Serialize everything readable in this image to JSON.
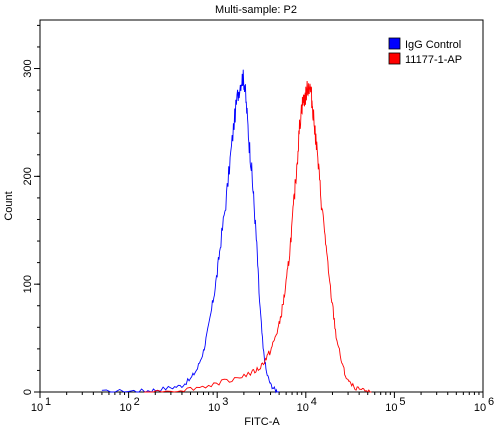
{
  "chart_data": {
    "type": "area",
    "title": "Multi-sample: P2",
    "xlabel": "FITC-A",
    "ylabel": "Count",
    "xscale": "log",
    "xlim": [
      10,
      1000000
    ],
    "ylim": [
      0,
      345
    ],
    "x_ticks": [
      {
        "base": "10",
        "exp": "1"
      },
      {
        "base": "10",
        "exp": "2"
      },
      {
        "base": "10",
        "exp": "3"
      },
      {
        "base": "10",
        "exp": "4"
      },
      {
        "base": "10",
        "exp": "5"
      },
      {
        "base": "10",
        "exp": "6"
      }
    ],
    "y_ticks": [
      "0",
      "100",
      "200",
      "300"
    ],
    "y_tick_values": [
      0,
      100,
      200,
      300
    ],
    "legend_position": "top-right",
    "grid": false,
    "series": [
      {
        "name": "IgG Control",
        "color": "#0000ff",
        "x": [
          50,
          100,
          150,
          200,
          300,
          400,
          500,
          600,
          700,
          800,
          900,
          1000,
          1100,
          1250,
          1400,
          1550,
          1700,
          1850,
          1950,
          2050,
          2150,
          2300,
          2450,
          2600,
          2800,
          3000,
          3300,
          3600,
          4000,
          4500,
          5000
        ],
        "y": [
          0,
          1,
          1,
          2,
          4,
          6,
          12,
          22,
          38,
          60,
          85,
          110,
          140,
          175,
          215,
          250,
          275,
          288,
          292,
          285,
          262,
          230,
          205,
          175,
          135,
          85,
          40,
          18,
          7,
          2,
          0
        ]
      },
      {
        "name": "11177-1-AP",
        "color": "#ff0000",
        "x": [
          150,
          300,
          500,
          800,
          1200,
          1800,
          2500,
          3000,
          3500,
          4000,
          4500,
          5000,
          5500,
          6000,
          6500,
          7000,
          7500,
          8000,
          8500,
          9000,
          9500,
          10000,
          10500,
          11000,
          11500,
          12000,
          12500,
          13000,
          14000,
          15000,
          16500,
          18000,
          20000,
          22000,
          25000,
          28000,
          32000,
          38000,
          45000,
          55000
        ],
        "y": [
          0,
          1,
          3,
          6,
          10,
          14,
          18,
          22,
          30,
          38,
          50,
          62,
          80,
          100,
          125,
          155,
          185,
          215,
          245,
          265,
          270,
          275,
          282,
          284,
          276,
          262,
          250,
          235,
          205,
          175,
          145,
          110,
          80,
          52,
          30,
          15,
          7,
          3,
          1,
          0
        ]
      }
    ]
  }
}
